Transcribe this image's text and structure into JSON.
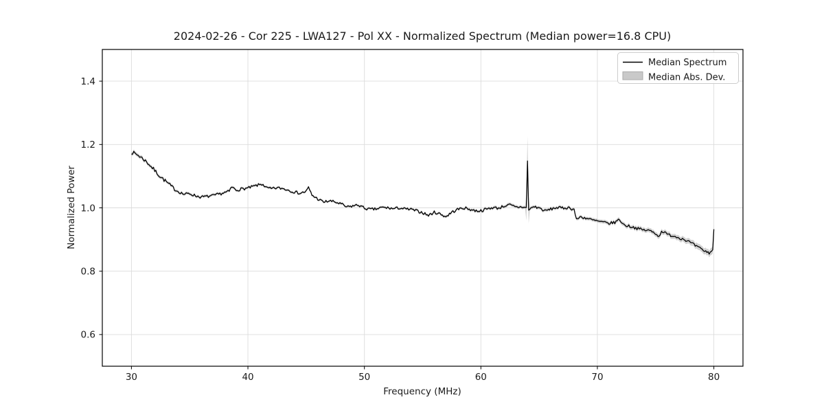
{
  "chart_data": {
    "type": "line",
    "title": "2024-02-26 - Cor 225 - LWA127 - Pol XX - Normalized Spectrum (Median power=16.8 CPU)",
    "xlabel": "Frequency (MHz)",
    "ylabel": "Normalized Power",
    "xlim": [
      27.5,
      82.5
    ],
    "ylim": [
      0.5,
      1.5
    ],
    "xticks": [
      30,
      40,
      50,
      60,
      70,
      80
    ],
    "xtick_labels": [
      "30",
      "40",
      "50",
      "60",
      "70",
      "80"
    ],
    "yticks": [
      0.6,
      0.8,
      1.0,
      1.2,
      1.4
    ],
    "ytick_labels": [
      "0.6",
      "0.8",
      "1.0",
      "1.2",
      "1.4"
    ],
    "grid": true,
    "legend": {
      "location": "upper right",
      "entries": [
        {
          "label": "Median Spectrum",
          "marker": "line",
          "color": "#000000"
        },
        {
          "label": "Median Abs. Dev.",
          "marker": "patch",
          "color": "#c9c9c9",
          "border_color": "#ababab"
        }
      ]
    },
    "series": [
      {
        "name": "Median Spectrum",
        "type": "line",
        "color": "#000000",
        "x": [
          30,
          30.5,
          31,
          31.5,
          32,
          32.5,
          33,
          33.5,
          34,
          34.5,
          35,
          35.5,
          36,
          36.5,
          37,
          37.5,
          38,
          38.4,
          38.6,
          39,
          39.5,
          40,
          40.5,
          41,
          41.3,
          41.5,
          42,
          42.5,
          43,
          43.5,
          44,
          44.5,
          45,
          45.2,
          45.5,
          46,
          46.5,
          47,
          47.5,
          48,
          48.5,
          49,
          49.5,
          50,
          50.5,
          51,
          51.5,
          52,
          52.5,
          53,
          53.5,
          54,
          54.5,
          55,
          55.5,
          56,
          56.5,
          57,
          57.5,
          58,
          58.5,
          59,
          59.5,
          60,
          60.5,
          61,
          61.5,
          62,
          62.5,
          63,
          63.5,
          63.92,
          64,
          64.08,
          64.5,
          65,
          65.5,
          66,
          66.5,
          67,
          67.5,
          68,
          68.25,
          68.45,
          69,
          69.5,
          70,
          70.5,
          71,
          71.5,
          71.9,
          72.2,
          72.5,
          73,
          73.5,
          74,
          74.5,
          75,
          75.3,
          75.5,
          76,
          76.5,
          77,
          77.5,
          78,
          78.5,
          79,
          79.3,
          79.6,
          79.8,
          79.9,
          80
        ],
        "y": [
          1.176,
          1.168,
          1.155,
          1.138,
          1.118,
          1.098,
          1.082,
          1.065,
          1.052,
          1.043,
          1.045,
          1.038,
          1.034,
          1.036,
          1.038,
          1.043,
          1.048,
          1.052,
          1.066,
          1.056,
          1.06,
          1.062,
          1.068,
          1.073,
          1.075,
          1.064,
          1.06,
          1.063,
          1.061,
          1.056,
          1.05,
          1.046,
          1.052,
          1.064,
          1.04,
          1.028,
          1.018,
          1.022,
          1.018,
          1.012,
          1.002,
          1.006,
          1.009,
          0.999,
          0.995,
          0.996,
          1.001,
          1.0,
          0.997,
          1.0,
          0.996,
          0.995,
          0.99,
          0.985,
          0.976,
          0.986,
          0.981,
          0.972,
          0.986,
          0.995,
          1.0,
          0.996,
          0.991,
          0.991,
          0.996,
          1.001,
          0.999,
          1.006,
          1.009,
          1.002,
          1.003,
          1.001,
          1.148,
          0.992,
          1.004,
          1.0,
          0.99,
          0.996,
          1.001,
          0.999,
          1.001,
          0.995,
          0.958,
          0.972,
          0.968,
          0.962,
          0.958,
          0.954,
          0.951,
          0.954,
          0.964,
          0.948,
          0.944,
          0.94,
          0.934,
          0.93,
          0.928,
          0.92,
          0.908,
          0.928,
          0.916,
          0.912,
          0.906,
          0.9,
          0.89,
          0.878,
          0.868,
          0.862,
          0.858,
          0.862,
          0.87,
          0.933
        ]
      },
      {
        "name": "Median Abs. Dev.",
        "type": "band",
        "around": "Median Spectrum",
        "color": "#bdbdbd",
        "halfwidth_points": [
          [
            30,
            0.006
          ],
          [
            34,
            0.0045
          ],
          [
            45,
            0.0035
          ],
          [
            58,
            0.004
          ],
          [
            62,
            0.005
          ],
          [
            63.8,
            0.005
          ],
          [
            64,
            0.078
          ],
          [
            64.2,
            0.005
          ],
          [
            68,
            0.005
          ],
          [
            71,
            0.006
          ],
          [
            74,
            0.007
          ],
          [
            76,
            0.0075
          ],
          [
            78,
            0.009
          ],
          [
            79.5,
            0.01
          ],
          [
            80,
            0.012
          ]
        ]
      }
    ],
    "spike": {
      "frequency_mhz": 64.0,
      "line_peak": 1.15,
      "band_peak": 1.22
    },
    "colors": {
      "grid": "#dcdcdc",
      "spine": "#000000",
      "text": "#1a1a1a",
      "background": "#ffffff"
    }
  }
}
